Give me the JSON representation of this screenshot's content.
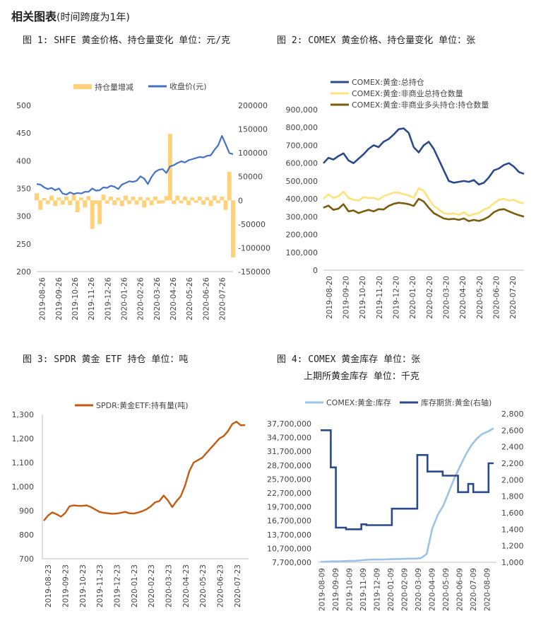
{
  "header": {
    "title": "相关图表",
    "subtitle": "(时间跨度为1年)"
  },
  "captions": [
    "图 1: SHFE 黄金价格、持仓量变化   单位：元/克",
    "图 2: COMEX 黄金价格、持仓量变化   单位：张",
    "图 3: SPDR 黄金 ETF 持仓   单位：吨",
    "图 4: COMEX 黄金库存   单位：张",
    "上期所黄金库存   单位：千克"
  ],
  "colors": {
    "navy": "#2b4a8b",
    "blue": "#4472c4",
    "orange": "#ffd27a",
    "yellow": "#ffe27a",
    "olive": "#7a5c0a",
    "brown": "#c55a11",
    "light": "#9dc3e6",
    "axis": "#bfbfbf"
  },
  "chart_data": [
    {
      "type": "line",
      "title": "",
      "series": [
        {
          "name": "持仓量增减",
          "axis": "right",
          "style": "bar"
        },
        {
          "name": "收盘价(元)",
          "axis": "left"
        }
      ],
      "left_ticks": [
        "500",
        "450",
        "400",
        "350",
        "300",
        "250",
        "200"
      ],
      "right_ticks": [
        "200000",
        "150000",
        "100000",
        "50000",
        "0",
        "-50000",
        "-100000",
        "-150000"
      ],
      "ylim_left": [
        200,
        500
      ],
      "ylim_right": [
        -150000,
        200000
      ],
      "x_labels": [
        "2019-08-26",
        "2019-09-26",
        "2019-10-26",
        "2019-11-26",
        "2019-12-26",
        "2020-01-26",
        "2020-02-26",
        "2020-03-26",
        "2020-04-26",
        "2020-05-26",
        "2020-06-26",
        "2020-07-26"
      ],
      "price": [
        358,
        357,
        352,
        349,
        351,
        347,
        350,
        341,
        339,
        343,
        340,
        342,
        341,
        344,
        344,
        350,
        346,
        347,
        352,
        351,
        355,
        353,
        349,
        357,
        360,
        363,
        362,
        364,
        372,
        368,
        358,
        371,
        380,
        384,
        385,
        378,
        390,
        392,
        396,
        399,
        397,
        401,
        403,
        405,
        407,
        406,
        409,
        410,
        420,
        428,
        445,
        430,
        414,
        412
      ],
      "oi_change": [
        15000,
        -20000,
        5000,
        -8000,
        10000,
        -12000,
        6000,
        -9000,
        8000,
        -10000,
        12000,
        -25000,
        6000,
        -15000,
        9000,
        -60000,
        -8000,
        -50000,
        12000,
        -7000,
        8000,
        -10000,
        6000,
        -12000,
        10000,
        -8000,
        8000,
        -9000,
        7000,
        -15000,
        6000,
        -10000,
        8000,
        -7000,
        -6000,
        9000,
        140000,
        -8000,
        10000,
        -6000,
        8000,
        -10000,
        6000,
        -5000,
        8000,
        -9000,
        7000,
        -12000,
        10000,
        -6000,
        8000,
        -20000,
        60000,
        -120000
      ]
    },
    {
      "type": "line",
      "title": "",
      "series": [
        {
          "name": "COMEX:黄金:总持仓",
          "values": [
            600000,
            630000,
            620000,
            640000,
            655000,
            615000,
            600000,
            625000,
            650000,
            680000,
            700000,
            690000,
            720000,
            735000,
            760000,
            790000,
            795000,
            770000,
            690000,
            660000,
            700000,
            720000,
            680000,
            620000,
            560000,
            500000,
            490000,
            495000,
            500000,
            495000,
            505000,
            480000,
            490000,
            520000,
            560000,
            570000,
            590000,
            600000,
            580000,
            550000,
            540000
          ]
        },
        {
          "name": "COMEX:黄金:非商业总持仓数量",
          "values": [
            400000,
            425000,
            405000,
            415000,
            440000,
            405000,
            395000,
            390000,
            410000,
            405000,
            405000,
            395000,
            415000,
            425000,
            435000,
            435000,
            425000,
            420000,
            405000,
            460000,
            445000,
            400000,
            360000,
            340000,
            320000,
            315000,
            318000,
            310000,
            325000,
            305000,
            315000,
            320000,
            340000,
            350000,
            375000,
            395000,
            400000,
            390000,
            395000,
            380000,
            375000
          ]
        },
        {
          "name": "COMEX:黄金:非商业多头持仓:持仓数量",
          "values": [
            350000,
            362000,
            338000,
            345000,
            370000,
            330000,
            335000,
            320000,
            330000,
            338000,
            330000,
            342000,
            340000,
            360000,
            372000,
            378000,
            375000,
            370000,
            360000,
            400000,
            385000,
            350000,
            320000,
            305000,
            290000,
            285000,
            288000,
            282000,
            290000,
            275000,
            282000,
            276000,
            285000,
            300000,
            325000,
            338000,
            342000,
            330000,
            318000,
            308000,
            300000
          ]
        }
      ],
      "y_ticks": [
        "900,000",
        "800,000",
        "700,000",
        "600,000",
        "500,000",
        "400,000",
        "300,000",
        "200,000",
        "100,000",
        "0"
      ],
      "ylim": [
        0,
        900000
      ],
      "x_labels": [
        "2019-08-20",
        "2019-09-20",
        "2019-10-20",
        "2019-11-20",
        "2019-12-20",
        "2020-01-20",
        "2020-02-20",
        "2020-03-20",
        "2020-04-20",
        "2020-05-20",
        "2020-06-20",
        "2020-07-20"
      ]
    },
    {
      "type": "line",
      "title": "",
      "series": [
        {
          "name": "SPDR:黄金ETF:持有量(吨)",
          "values": [
            858,
            880,
            893,
            885,
            875,
            890,
            918,
            922,
            920,
            920,
            922,
            915,
            905,
            895,
            891,
            889,
            887,
            888,
            891,
            895,
            889,
            888,
            892,
            898,
            906,
            918,
            935,
            940,
            963,
            942,
            915,
            940,
            960,
            1005,
            1065,
            1100,
            1110,
            1120,
            1140,
            1160,
            1180,
            1200,
            1210,
            1230,
            1260,
            1270,
            1255,
            1256
          ]
        }
      ],
      "y_ticks": [
        "1,300",
        "1,200",
        "1,100",
        "1,000",
        "900",
        "800",
        "700"
      ],
      "ylim": [
        700,
        1300
      ],
      "x_labels": [
        "2019-08-23",
        "2019-09-23",
        "2019-10-23",
        "2019-11-23",
        "2019-12-23",
        "2020-01-23",
        "2020-02-23",
        "2020-03-23",
        "2020-04-23",
        "2020-05-23",
        "2020-06-23",
        "2020-07-23"
      ]
    },
    {
      "type": "line",
      "title": "",
      "series": [
        {
          "name": "COMEX:黄金:库存",
          "axis": "left",
          "values": [
            7800000,
            7850000,
            7900000,
            7900000,
            7950000,
            8000000,
            8000000,
            8100000,
            8200000,
            8300000,
            8300000,
            8300000,
            8350000,
            8400000,
            8400000,
            8450000,
            8500000,
            8500000,
            8600000,
            9500000,
            15000000,
            18000000,
            20000000,
            23000000,
            26000000,
            28500000,
            31000000,
            33000000,
            34500000,
            35500000,
            36000000,
            36700000
          ]
        },
        {
          "name": "库存期货:黄金(右轴)",
          "axis": "right",
          "values": [
            2600,
            2600,
            2150,
            1420,
            1420,
            1400,
            1400,
            1400,
            1460,
            1450,
            1450,
            1450,
            1450,
            1450,
            1650,
            1650,
            1650,
            1650,
            1650,
            2300,
            2300,
            2100,
            2100,
            2100,
            2050,
            2050,
            2050,
            1850,
            1850,
            1950,
            1850,
            1850,
            1850,
            2200,
            2200
          ]
        }
      ],
      "left_ticks": [
        "37,700,000",
        "34,700,000",
        "31,700,000",
        "28,700,000",
        "25,700,000",
        "22,700,000",
        "19,700,000",
        "16,700,000",
        "13,700,000",
        "10,700,000",
        "7,700,000"
      ],
      "right_ticks": [
        "2,800",
        "2,600",
        "2,400",
        "2,200",
        "2,000",
        "1,800",
        "1,600",
        "1,400",
        "1,200",
        "1,000"
      ],
      "ylim_left": [
        7700000,
        37700000
      ],
      "ylim_right": [
        1000,
        2800
      ],
      "x_labels": [
        "2019-08-09",
        "2019-09-09",
        "2019-10-09",
        "2019-11-09",
        "2019-12-09",
        "2020-01-09",
        "2020-02-09",
        "2020-03-09",
        "2020-04-09",
        "2020-05-09",
        "2020-06-09",
        "2020-07-09",
        "2020-08-09"
      ]
    }
  ]
}
